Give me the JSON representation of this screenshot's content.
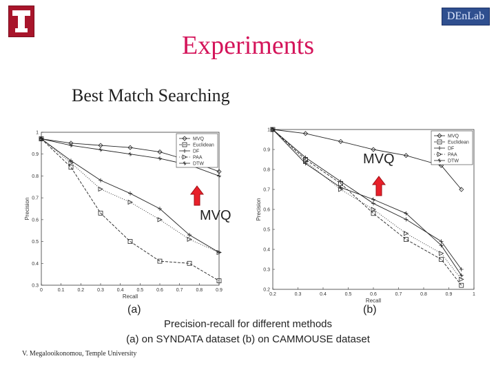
{
  "slide": {
    "title": "Experiments",
    "subtitle": "Best Match Searching",
    "logo_letter": "T",
    "lab_name": "DEnLab",
    "mvq_annotation_left": "MVQ",
    "mvq_annotation_right": "MVQ",
    "panel_a": "(a)",
    "panel_b": "(b)",
    "caption_line1": "Precision-recall for different methods",
    "caption_line2": "(a) on SYNDATA dataset  (b) on CAMMOUSE dataset",
    "footer": "V. Megalooikonomou, Temple University"
  },
  "colors": {
    "title": "#d4145a",
    "logo": "#a8152b",
    "arrow": "#e8202a"
  },
  "chart_data": [
    {
      "type": "line",
      "panel": "(a)",
      "xlabel": "Recall",
      "ylabel": "Precision",
      "xlim": [
        0,
        0.9
      ],
      "ylim": [
        0.3,
        1.0
      ],
      "xticks": [
        "0",
        "0.1",
        "0.2",
        "0.3",
        "0.4",
        "0.5",
        "0.6",
        "0.7",
        "0.8",
        "0.9"
      ],
      "yticks": [
        "0.3",
        "0.4",
        "0.5",
        "0.6",
        "0.7",
        "0.8",
        "0.9",
        "1"
      ],
      "legend": [
        "MVQ",
        "Euclidean",
        "DF",
        "PAA",
        "DTW"
      ],
      "series": [
        {
          "name": "MVQ",
          "marker": "diamond",
          "x": [
            0.0,
            0.15,
            0.3,
            0.45,
            0.6,
            0.75,
            0.9
          ],
          "y": [
            0.97,
            0.95,
            0.94,
            0.93,
            0.91,
            0.87,
            0.82
          ]
        },
        {
          "name": "Euclidean",
          "marker": "square",
          "x": [
            0.0,
            0.15,
            0.3,
            0.45,
            0.6,
            0.75,
            0.9
          ],
          "y": [
            0.97,
            0.84,
            0.63,
            0.5,
            0.41,
            0.4,
            0.32
          ]
        },
        {
          "name": "DF",
          "marker": "plus",
          "x": [
            0.0,
            0.15,
            0.3,
            0.45,
            0.6,
            0.75,
            0.9
          ],
          "y": [
            0.97,
            0.87,
            0.78,
            0.72,
            0.65,
            0.53,
            0.45
          ]
        },
        {
          "name": "PAA",
          "marker": "triangle",
          "x": [
            0.0,
            0.15,
            0.3,
            0.45,
            0.6,
            0.75,
            0.9
          ],
          "y": [
            0.97,
            0.86,
            0.74,
            0.68,
            0.6,
            0.51,
            0.45
          ]
        },
        {
          "name": "DTW",
          "marker": "cross",
          "x": [
            0.0,
            0.15,
            0.3,
            0.45,
            0.6,
            0.75,
            0.9
          ],
          "y": [
            0.97,
            0.94,
            0.92,
            0.9,
            0.88,
            0.85,
            0.8
          ]
        }
      ]
    },
    {
      "type": "line",
      "panel": "(b)",
      "xlabel": "Recall",
      "ylabel": "Precision",
      "xlim": [
        0.2,
        1.0
      ],
      "ylim": [
        0.2,
        1.0
      ],
      "xticks": [
        "0.2",
        "0.3",
        "0.4",
        "0.5",
        "0.6",
        "0.7",
        "0.8",
        "0.9",
        "1"
      ],
      "yticks": [
        "0.2",
        "0.3",
        "0.4",
        "0.5",
        "0.6",
        "0.7",
        "0.8",
        "0.9",
        "1"
      ],
      "legend": [
        "MVQ",
        "Euclidean",
        "DF",
        "PAA",
        "DTW"
      ],
      "series": [
        {
          "name": "MVQ",
          "marker": "diamond",
          "x": [
            0.2,
            0.33,
            0.47,
            0.6,
            0.73,
            0.87,
            0.95
          ],
          "y": [
            1.0,
            0.98,
            0.94,
            0.9,
            0.87,
            0.82,
            0.7
          ]
        },
        {
          "name": "Euclidean",
          "marker": "square",
          "x": [
            0.2,
            0.33,
            0.47,
            0.6,
            0.73,
            0.87,
            0.95
          ],
          "y": [
            1.0,
            0.85,
            0.73,
            0.58,
            0.45,
            0.35,
            0.22
          ]
        },
        {
          "name": "DF",
          "marker": "plus",
          "x": [
            0.2,
            0.33,
            0.47,
            0.6,
            0.73,
            0.87,
            0.95
          ],
          "y": [
            1.0,
            0.86,
            0.74,
            0.63,
            0.55,
            0.44,
            0.3
          ]
        },
        {
          "name": "PAA",
          "marker": "triangle",
          "x": [
            0.2,
            0.33,
            0.47,
            0.6,
            0.73,
            0.87,
            0.95
          ],
          "y": [
            1.0,
            0.84,
            0.7,
            0.6,
            0.48,
            0.38,
            0.25
          ]
        },
        {
          "name": "DTW",
          "marker": "cross",
          "x": [
            0.2,
            0.33,
            0.47,
            0.6,
            0.73,
            0.87,
            0.95
          ],
          "y": [
            1.0,
            0.83,
            0.71,
            0.65,
            0.58,
            0.42,
            0.27
          ]
        }
      ]
    }
  ]
}
